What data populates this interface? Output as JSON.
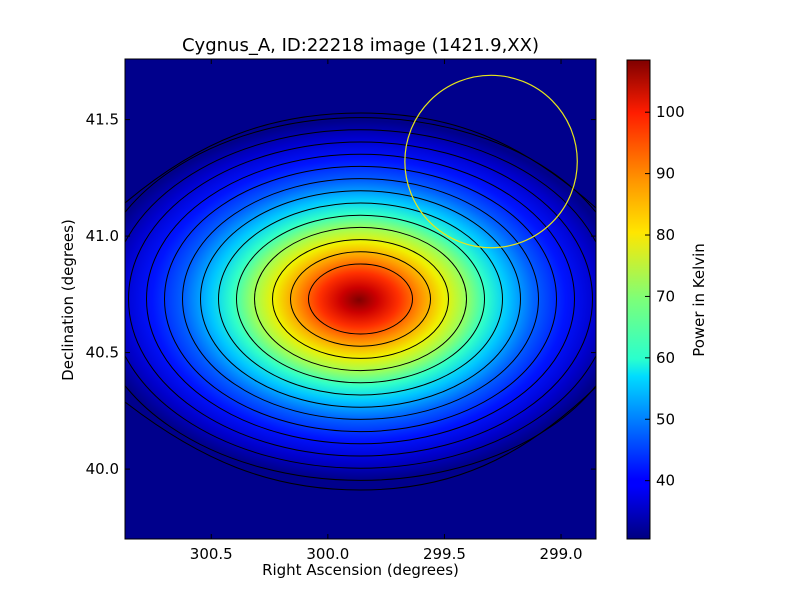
{
  "chart_data": {
    "type": "heatmap",
    "title": "Cygnus_A, ID:22218 image (1421.9,XX)",
    "xlabel": "Right Ascension (degrees)",
    "ylabel": "Declination (degrees)",
    "colorbar_label": "Power in Kelvin",
    "colormap": "jet",
    "x_axis_inverted": true,
    "xlim": [
      300.87,
      298.85
    ],
    "ylim": [
      39.7,
      41.76
    ],
    "x_ticks": [
      300.5,
      300.0,
      299.5,
      299.0
    ],
    "x_tick_labels": [
      "300.5",
      "300.0",
      "299.5",
      "299.0"
    ],
    "y_ticks": [
      40.0,
      40.5,
      41.0,
      41.5
    ],
    "y_tick_labels": [
      "40.0",
      "40.5",
      "41.0",
      "41.5"
    ],
    "color_range": [
      30.5,
      108.5
    ],
    "colorbar_ticks": [
      40,
      50,
      60,
      70,
      80,
      90,
      100
    ],
    "colorbar_tick_labels": [
      "40",
      "50",
      "60",
      "70",
      "80",
      "90",
      "100"
    ],
    "peak": {
      "ra": 299.86,
      "dec": 40.73,
      "value": 108.5
    },
    "background_level": 30.5,
    "contour_lines": 13,
    "contour_color": "#000000",
    "beam_circle": {
      "ra": 299.3,
      "dec": 41.32,
      "radius_deg": 0.37,
      "color": "#e6e61a"
    }
  }
}
